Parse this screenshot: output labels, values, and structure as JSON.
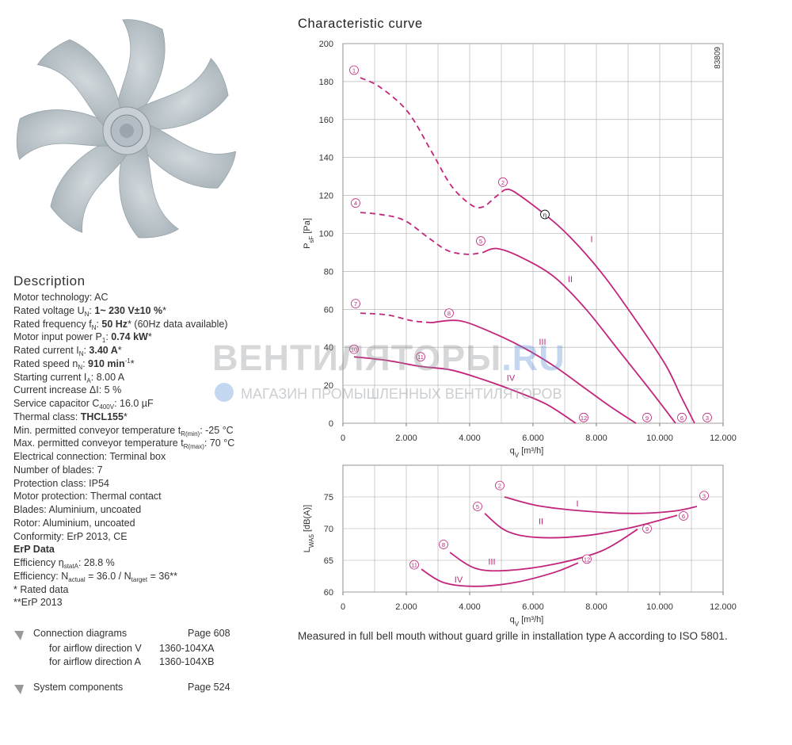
{
  "description": {
    "title": "Description",
    "lines": [
      [
        {
          "text": "Motor technology: AC"
        }
      ],
      [
        {
          "text": "Rated voltage U"
        },
        {
          "text": "N",
          "style": "sub"
        },
        {
          "text": ": "
        },
        {
          "text": "1~ 230 V±10 %",
          "style": "b"
        },
        {
          "text": "*"
        }
      ],
      [
        {
          "text": "Rated frequency f"
        },
        {
          "text": "N",
          "style": "sub"
        },
        {
          "text": ": "
        },
        {
          "text": "50 Hz",
          "style": "b"
        },
        {
          "text": "* (60Hz data available)"
        }
      ],
      [
        {
          "text": "Motor input power P"
        },
        {
          "text": "1",
          "style": "sub"
        },
        {
          "text": ": "
        },
        {
          "text": "0.74 kW",
          "style": "b"
        },
        {
          "text": "*"
        }
      ],
      [
        {
          "text": "Rated current I"
        },
        {
          "text": "N",
          "style": "sub"
        },
        {
          "text": ": "
        },
        {
          "text": "3.40 A",
          "style": "b"
        },
        {
          "text": "*"
        }
      ],
      [
        {
          "text": "Rated speed n"
        },
        {
          "text": "N",
          "style": "sub"
        },
        {
          "text": ": "
        },
        {
          "text": "910 min",
          "style": "b"
        },
        {
          "text": "-1",
          "style": "sup"
        },
        {
          "text": "*"
        }
      ],
      [
        {
          "text": "Starting current I"
        },
        {
          "text": "A",
          "style": "sub"
        },
        {
          "text": ": 8.00 A"
        }
      ],
      [
        {
          "text": "Current increase ΔI: 5 %"
        }
      ],
      [
        {
          "text": "Service capacitor C"
        },
        {
          "text": "400V",
          "style": "sub"
        },
        {
          "text": ": 16.0 µF"
        }
      ],
      [
        {
          "text": "Thermal class: "
        },
        {
          "text": "THCL155",
          "style": "b"
        },
        {
          "text": "*"
        }
      ],
      [
        {
          "text": "Min. permitted conveyor temperature t"
        },
        {
          "text": "R(min)",
          "style": "sub"
        },
        {
          "text": ": -25 °C"
        }
      ],
      [
        {
          "text": "Max. permitted conveyor temperature t"
        },
        {
          "text": "R(max)",
          "style": "sub"
        },
        {
          "text": ": 70 °C"
        }
      ],
      [
        {
          "text": "Electrical connection: Terminal box"
        }
      ],
      [
        {
          "text": "Number of blades: 7"
        }
      ],
      [
        {
          "text": "Protection class: IP54"
        }
      ],
      [
        {
          "text": "Motor protection: Thermal contact"
        }
      ],
      [
        {
          "text": "Blades: Aluminium, uncoated"
        }
      ],
      [
        {
          "text": "Rotor: Aluminium, uncoated"
        }
      ],
      [
        {
          "text": "Conformity: ErP 2013, CE"
        }
      ],
      [
        {
          "text": "ErP Data",
          "style": "b"
        }
      ],
      [
        {
          "text": "Efficiency η"
        },
        {
          "text": "statA",
          "style": "sub"
        },
        {
          "text": ": 28.8 %"
        }
      ],
      [
        {
          "text": "Efficiency: N"
        },
        {
          "text": "actual",
          "style": "sub"
        },
        {
          "text": " = 36.0 / N"
        },
        {
          "text": "target",
          "style": "sub"
        },
        {
          "text": " = 36**"
        }
      ],
      [
        {
          "text": "* Rated data"
        }
      ],
      [
        {
          "text": "**ErP 2013"
        }
      ]
    ]
  },
  "links": [
    {
      "label": "Connection diagrams",
      "page": "Page 608",
      "items": [
        {
          "label": "for airflow direction V",
          "code": "1360-104XA"
        },
        {
          "label": "for airflow direction A",
          "code": "1360-104XB"
        }
      ]
    },
    {
      "label": "System components",
      "page": "Page 524",
      "items": []
    }
  ],
  "watermark": {
    "title": "ВЕНТИЛЯТОРЫ",
    "suffix": ".RU",
    "subtitle": "МАГАЗИН ПРОМЫШЛЕННЫХ ВЕНТИЛЯТОРОВ"
  },
  "caption": "Measured in full bell mouth without guard grille in installation type A according to ISO 5801.",
  "chart_data": [
    {
      "type": "line",
      "title": "Characteristic curve",
      "doc_id": "83809",
      "xlabel": [
        {
          "text": "q"
        },
        {
          "text": "V",
          "style": "sub"
        },
        {
          "text": " [m³/h]"
        }
      ],
      "ylabel": [
        {
          "text": "P"
        },
        {
          "text": "sF",
          "style": "sub"
        },
        {
          "text": " [Pa]"
        }
      ],
      "xlim": [
        0,
        12000
      ],
      "ylim": [
        0,
        200
      ],
      "xticks": [
        0,
        {
          "value": 2000,
          "label": "2.000"
        },
        {
          "value": 4000,
          "label": "4.000"
        },
        {
          "value": 6000,
          "label": "6.000"
        },
        {
          "value": 8000,
          "label": "8.000"
        },
        {
          "value": 10000,
          "label": "10.000"
        },
        {
          "value": 12000,
          "label": "12.000"
        }
      ],
      "xgrid": [
        1000,
        2000,
        3000,
        4000,
        5000,
        6000,
        7000,
        8000,
        9000,
        10000,
        11000
      ],
      "yticks": [
        0,
        20,
        40,
        60,
        80,
        100,
        120,
        140,
        160,
        180,
        200
      ],
      "grid": true,
      "series": [
        {
          "color": "#c2267c",
          "style": "dashed",
          "x": [
            550,
            1175,
            2050,
            2800,
            3425,
            4050,
            4425,
            4800,
            5100
          ],
          "values": [
            182,
            177,
            164,
            143,
            125,
            115,
            114,
            119,
            123
          ]
        },
        {
          "name": "I",
          "color": "#c2267c",
          "style": "solid",
          "x": [
            5100,
            5400,
            6375,
            7175,
            8175,
            9175,
            10175,
            10675,
            11100
          ],
          "values": [
            123,
            122,
            110,
            98,
            79,
            56,
            31,
            14,
            0
          ]
        },
        {
          "color": "#c2267c",
          "style": "dashed",
          "x": [
            550,
            1175,
            1925,
            2675,
            3300,
            3925,
            4425
          ],
          "values": [
            111,
            110,
            107,
            98,
            91,
            89,
            90
          ]
        },
        {
          "name": "II",
          "color": "#c2267c",
          "style": "solid",
          "x": [
            4425,
            4875,
            5675,
            6675,
            7675,
            8675,
            9675,
            10500
          ],
          "values": [
            90,
            92,
            87,
            77,
            60,
            39,
            18,
            0
          ]
        },
        {
          "color": "#c2267c",
          "style": "dashed",
          "x": [
            550,
            1425,
            2175,
            2800
          ],
          "values": [
            58,
            57,
            54,
            53
          ]
        },
        {
          "name": "III",
          "color": "#c2267c",
          "style": "solid",
          "x": [
            2800,
            3675,
            4675,
            5675,
            6675,
            7675,
            8425,
            9250
          ],
          "values": [
            53,
            54,
            48,
            40,
            30,
            18,
            9,
            0
          ]
        },
        {
          "name": "IV",
          "color": "#c2267c",
          "style": "solid",
          "x": [
            350,
            1425,
            2425,
            3425,
            4425,
            5425,
            6425,
            7350
          ],
          "values": [
            35,
            33,
            30,
            28,
            23,
            17,
            10,
            0
          ]
        }
      ],
      "series_labels": [
        {
          "text": "I",
          "x": 7850,
          "y": 97
        },
        {
          "text": "II",
          "x": 7175,
          "y": 76
        },
        {
          "text": "III",
          "x": 6300,
          "y": 43
        },
        {
          "text": "IV",
          "x": 5300,
          "y": 24
        }
      ],
      "point_labels": [
        {
          "text": "1",
          "x": 350,
          "y": 186,
          "color": "#c2267c"
        },
        {
          "text": "2",
          "x": 5050,
          "y": 127,
          "color": "#c2267c"
        },
        {
          "text": "η",
          "x": 6375,
          "y": 110,
          "color": "#000000"
        },
        {
          "text": "3",
          "x": 11500,
          "y": 3,
          "color": "#c2267c"
        },
        {
          "text": "4",
          "x": 400,
          "y": 116,
          "color": "#c2267c"
        },
        {
          "text": "5",
          "x": 4350,
          "y": 96,
          "color": "#c2267c"
        },
        {
          "text": "6",
          "x": 10700,
          "y": 3,
          "color": "#c2267c"
        },
        {
          "text": "7",
          "x": 400,
          "y": 63,
          "color": "#c2267c"
        },
        {
          "text": "8",
          "x": 3350,
          "y": 58,
          "color": "#c2267c"
        },
        {
          "text": "9",
          "x": 9600,
          "y": 3,
          "color": "#c2267c"
        },
        {
          "text": "10",
          "x": 350,
          "y": 39,
          "color": "#c2267c"
        },
        {
          "text": "11",
          "x": 2450,
          "y": 35,
          "color": "#c2267c"
        },
        {
          "text": "12",
          "x": 7600,
          "y": 3,
          "color": "#c2267c"
        }
      ]
    },
    {
      "type": "line",
      "xlabel": [
        {
          "text": "q"
        },
        {
          "text": "V",
          "style": "sub"
        },
        {
          "text": " [m³/h]"
        }
      ],
      "ylabel": [
        {
          "text": "L"
        },
        {
          "text": "WA5",
          "style": "sub"
        },
        {
          "text": " [dB(A)]"
        }
      ],
      "xlim": [
        0,
        12000
      ],
      "ylim": [
        60,
        80
      ],
      "xticks": [
        0,
        {
          "value": 2000,
          "label": "2.000"
        },
        {
          "value": 4000,
          "label": "4.000"
        },
        {
          "value": 6000,
          "label": "6.000"
        },
        {
          "value": 8000,
          "label": "8.000"
        },
        {
          "value": 10000,
          "label": "10.000"
        },
        {
          "value": 12000,
          "label": "12.000"
        }
      ],
      "xgrid": [
        1000,
        2000,
        3000,
        4000,
        5000,
        6000,
        7000,
        8000,
        9000,
        10000,
        11000
      ],
      "yticks": [
        60,
        65,
        70,
        75
      ],
      "grid": true,
      "series": [
        {
          "name": "I",
          "color": "#c2267c",
          "style": "solid",
          "x": [
            5100,
            6175,
            7675,
            9175,
            10425,
            11175
          ],
          "values": [
            75,
            73.6,
            72.75,
            72.4,
            72.75,
            73.5
          ]
        },
        {
          "name": "II",
          "color": "#c2267c",
          "style": "solid",
          "x": [
            4475,
            5175,
            6175,
            7675,
            9175,
            10550
          ],
          "values": [
            72.4,
            69.6,
            68.6,
            68.9,
            70.25,
            72.1
          ]
        },
        {
          "name": "III",
          "color": "#c2267c",
          "style": "solid",
          "x": [
            3375,
            4175,
            5175,
            6675,
            8175,
            9300
          ],
          "values": [
            66.25,
            63.75,
            63.4,
            64.4,
            66.5,
            69.9
          ]
        },
        {
          "name": "IV",
          "color": "#c2267c",
          "style": "solid",
          "x": [
            2475,
            3175,
            4175,
            5425,
            6675,
            7425
          ],
          "values": [
            63.6,
            61.5,
            60.9,
            61.5,
            63.1,
            64.6
          ]
        }
      ],
      "series_labels": [
        {
          "text": "I",
          "x": 7400,
          "y": 74
        },
        {
          "text": "II",
          "x": 6250,
          "y": 71.2
        },
        {
          "text": "III",
          "x": 4700,
          "y": 64.8
        },
        {
          "text": "IV",
          "x": 3650,
          "y": 62
        }
      ],
      "point_labels": [
        {
          "text": "2",
          "x": 4950,
          "y": 76.8,
          "color": "#c2267c"
        },
        {
          "text": "3",
          "x": 11400,
          "y": 75.2,
          "color": "#c2267c"
        },
        {
          "text": "5",
          "x": 4250,
          "y": 73.5,
          "color": "#c2267c"
        },
        {
          "text": "6",
          "x": 10750,
          "y": 72,
          "color": "#c2267c"
        },
        {
          "text": "8",
          "x": 3175,
          "y": 67.5,
          "color": "#c2267c"
        },
        {
          "text": "9",
          "x": 9600,
          "y": 70,
          "color": "#c2267c"
        },
        {
          "text": "11",
          "x": 2250,
          "y": 64.3,
          "color": "#c2267c"
        },
        {
          "text": "12",
          "x": 7700,
          "y": 65.2,
          "color": "#c2267c"
        }
      ]
    }
  ]
}
